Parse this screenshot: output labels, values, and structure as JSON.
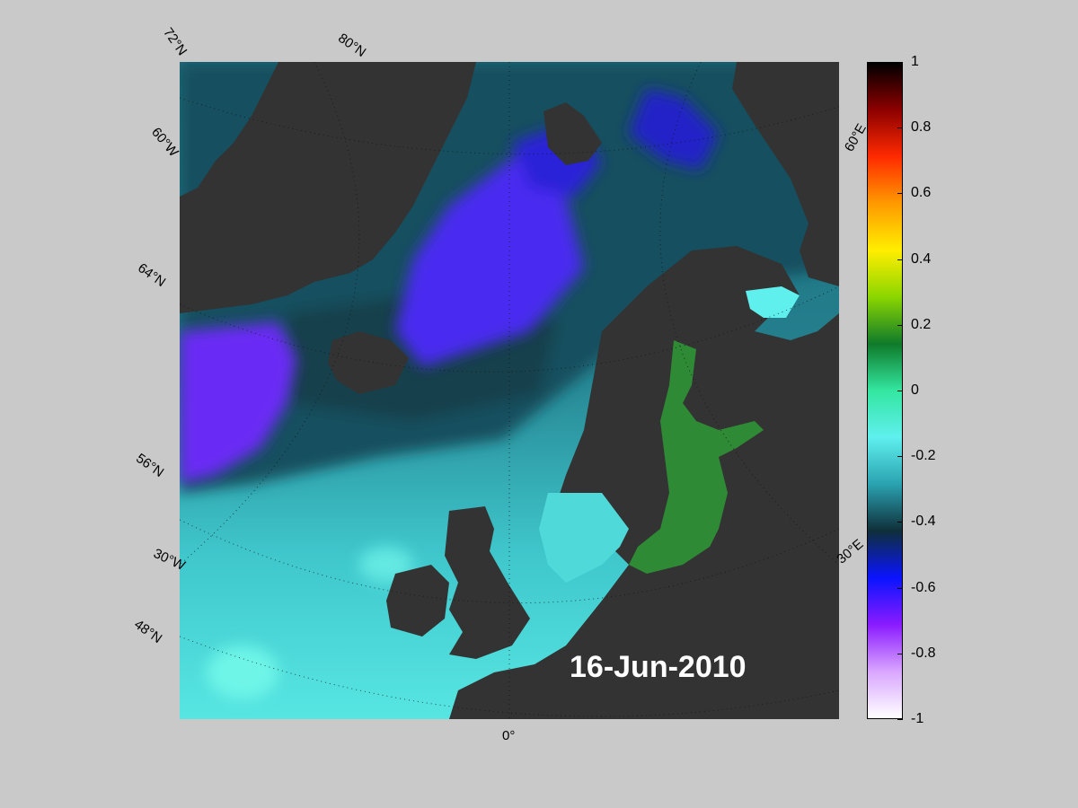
{
  "date_text": "16-Jun-2010",
  "lat_labels": [
    "72°N",
    "60°N",
    "64°N",
    "56°N",
    "48°N"
  ],
  "lon_labels": [
    "60°W",
    "30°W",
    "0°",
    "30°E",
    "60°E"
  ],
  "top_labels": [
    "80°N"
  ],
  "colorbar": {
    "ticks": [
      "1",
      "0.8",
      "0.6",
      "0.4",
      "0.2",
      "0",
      "-0.2",
      "-0.4",
      "-0.6",
      "-0.8",
      "-1"
    ],
    "colors": [
      "#000000",
      "#8b0000",
      "#ff2a00",
      "#ff9900",
      "#ffee00",
      "#8bd600",
      "#0f7a2a",
      "#33e6a0",
      "#5ff0ee",
      "#2aa2b0",
      "#0f2f3a",
      "#0a14ff",
      "#8a1bff",
      "#d9a6ff",
      "#ffffff"
    ]
  },
  "map_colors": {
    "land": "#333333",
    "ice_land": "#808080",
    "ocean_base": "#2b8f9c",
    "low_anomaly": "#6a2cff",
    "baltic": "#2f8a35"
  }
}
